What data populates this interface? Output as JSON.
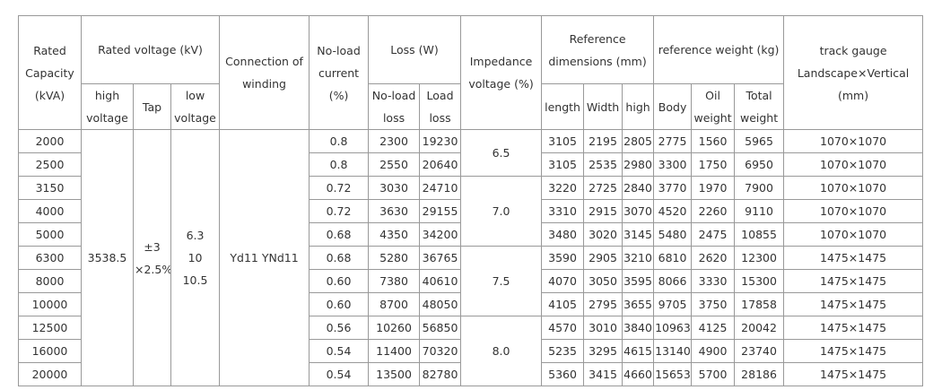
{
  "header": {
    "capacity": "Rated Capacity (kVA)",
    "rated_voltage": "Rated voltage (kV)",
    "high_voltage": "high voltage",
    "tap": "Tap",
    "low_voltage": "low voltage",
    "connection": "Connection of winding",
    "no_load_current": "No-load current (%)",
    "loss": "Loss (W)",
    "no_load_loss": "No-load loss",
    "load_loss": "Load loss",
    "impedance": "Impedance voltage (%)",
    "ref_dim": "Reference dimensions (mm)",
    "length": "length",
    "width": "Width",
    "high": "high",
    "ref_weight": "reference weight (kg)",
    "body": "Body",
    "oil": "Oil weight",
    "total": "Total weight",
    "gauge": "track gauge Landscape×Vertical (mm)"
  },
  "merged": {
    "high_voltage": "3538.5",
    "tap": [
      "±3",
      "×2.5%"
    ],
    "low_voltage": [
      "6.3",
      "10",
      "10.5"
    ],
    "connection": "Yd11 YNd11"
  },
  "groups": [
    {
      "impedance": "6.5",
      "rows": [
        [
          "2000",
          "0.8",
          "2300",
          "19230",
          "3105",
          "2195",
          "2805",
          "2775",
          "1560",
          "5965",
          "1070×1070"
        ],
        [
          "2500",
          "0.8",
          "2550",
          "20640",
          "3105",
          "2535",
          "2980",
          "3300",
          "1750",
          "6950",
          "1070×1070"
        ]
      ]
    },
    {
      "impedance": "7.0",
      "rows": [
        [
          "3150",
          "0.72",
          "3030",
          "24710",
          "3220",
          "2725",
          "2840",
          "3770",
          "1970",
          "7900",
          "1070×1070"
        ],
        [
          "4000",
          "0.72",
          "3630",
          "29155",
          "3310",
          "2915",
          "3070",
          "4520",
          "2260",
          "9110",
          "1070×1070"
        ],
        [
          "5000",
          "0.68",
          "4350",
          "34200",
          "3480",
          "3020",
          "3145",
          "5480",
          "2475",
          "10855",
          "1070×1070"
        ]
      ]
    },
    {
      "impedance": "7.5",
      "rows": [
        [
          "6300",
          "0.68",
          "5280",
          "36765",
          "3590",
          "2905",
          "3210",
          "6810",
          "2620",
          "12300",
          "1475×1475"
        ],
        [
          "8000",
          "0.60",
          "7380",
          "40610",
          "4070",
          "3050",
          "3595",
          "8066",
          "3330",
          "15300",
          "1475×1475"
        ],
        [
          "10000",
          "0.60",
          "8700",
          "48050",
          "4105",
          "2795",
          "3655",
          "9705",
          "3750",
          "17858",
          "1475×1475"
        ]
      ]
    },
    {
      "impedance": "8.0",
      "rows": [
        [
          "12500",
          "0.56",
          "10260",
          "56850",
          "4570",
          "3010",
          "3840",
          "10963",
          "4125",
          "20042",
          "1475×1475"
        ],
        [
          "16000",
          "0.54",
          "11400",
          "70320",
          "5235",
          "3295",
          "4615",
          "13140",
          "4900",
          "23740",
          "1475×1475"
        ],
        [
          "20000",
          "0.54",
          "13500",
          "82780",
          "5360",
          "3415",
          "4660",
          "15653",
          "5700",
          "28186",
          "1475×1475"
        ]
      ]
    }
  ]
}
